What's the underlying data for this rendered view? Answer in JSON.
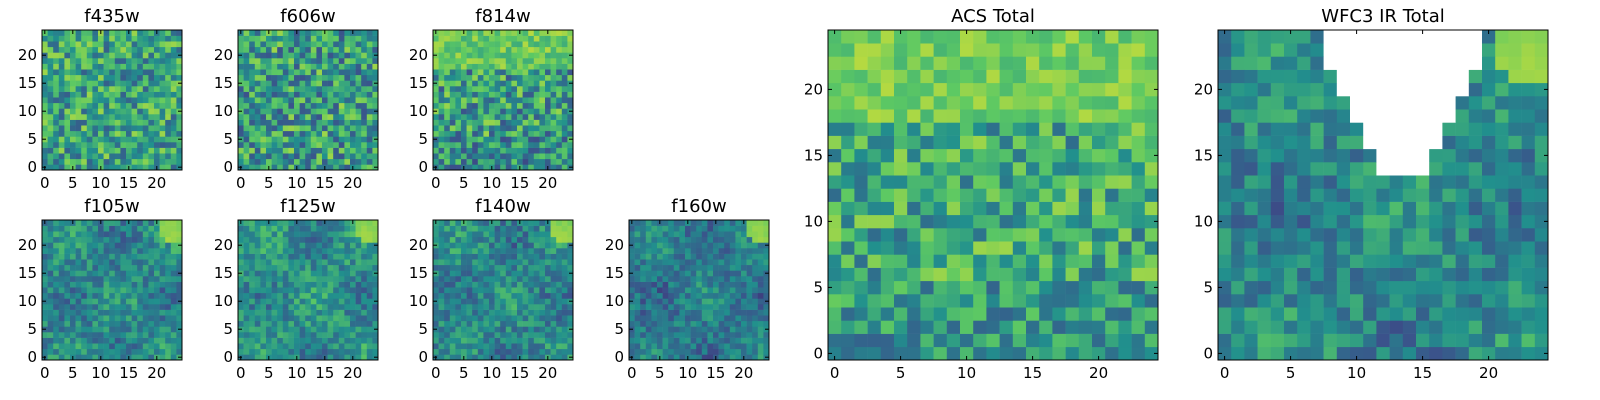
{
  "colormap": [
    "#440154",
    "#3b528b",
    "#21908d",
    "#5dc963",
    "#fde725"
  ],
  "chart_data": [
    {
      "type": "heatmap",
      "title": "f435w",
      "cmap_range": [
        0.3,
        0.85
      ],
      "seed": 11,
      "structure": "noise",
      "xticks": [
        "0",
        "5",
        "10",
        "15",
        "20"
      ],
      "yticks": [
        "0",
        "5",
        "10",
        "15",
        "20"
      ],
      "xlim": [
        0,
        24
      ],
      "ylim": [
        0,
        24
      ]
    },
    {
      "type": "heatmap",
      "title": "f606w",
      "cmap_range": [
        0.25,
        0.85
      ],
      "seed": 23,
      "structure": "noise",
      "xticks": [
        "0",
        "5",
        "10",
        "15",
        "20"
      ],
      "yticks": [
        "0",
        "5",
        "10",
        "15",
        "20"
      ],
      "xlim": [
        0,
        24
      ],
      "ylim": [
        0,
        24
      ]
    },
    {
      "type": "heatmap",
      "title": "f814w",
      "cmap_range": [
        0.25,
        0.85
      ],
      "seed": 37,
      "structure": "topband",
      "xticks": [
        "0",
        "5",
        "10",
        "15",
        "20"
      ],
      "yticks": [
        "0",
        "5",
        "10",
        "15",
        "20"
      ],
      "xlim": [
        0,
        24
      ],
      "ylim": [
        0,
        24
      ]
    },
    {
      "type": "heatmap",
      "title": "f105w",
      "cmap_range": [
        0.2,
        0.7
      ],
      "seed": 41,
      "structure": "corner",
      "xticks": [
        "0",
        "5",
        "10",
        "15",
        "20"
      ],
      "yticks": [
        "0",
        "5",
        "10",
        "15",
        "20"
      ],
      "xlim": [
        0,
        24
      ],
      "ylim": [
        0,
        24
      ]
    },
    {
      "type": "heatmap",
      "title": "f125w",
      "cmap_range": [
        0.25,
        0.75
      ],
      "seed": 53,
      "structure": "corner",
      "xticks": [
        "0",
        "5",
        "10",
        "15",
        "20"
      ],
      "yticks": [
        "0",
        "5",
        "10",
        "15",
        "20"
      ],
      "xlim": [
        0,
        24
      ],
      "ylim": [
        0,
        24
      ]
    },
    {
      "type": "heatmap",
      "title": "f140w",
      "cmap_range": [
        0.2,
        0.7
      ],
      "seed": 67,
      "structure": "corner",
      "xticks": [
        "0",
        "5",
        "10",
        "15",
        "20"
      ],
      "yticks": [
        "0",
        "5",
        "10",
        "15",
        "20"
      ],
      "xlim": [
        0,
        24
      ],
      "ylim": [
        0,
        24
      ]
    },
    {
      "type": "heatmap",
      "title": "f160w",
      "cmap_range": [
        0.15,
        0.6
      ],
      "seed": 79,
      "structure": "corner",
      "xticks": [
        "0",
        "5",
        "10",
        "15",
        "20"
      ],
      "yticks": [
        "0",
        "5",
        "10",
        "15",
        "20"
      ],
      "xlim": [
        0,
        24
      ],
      "ylim": [
        0,
        24
      ]
    },
    {
      "type": "heatmap",
      "title": "ACS Total",
      "cmap_range": [
        0.35,
        0.85
      ],
      "seed": 97,
      "structure": "topband",
      "xticks": [
        "0",
        "5",
        "10",
        "15",
        "20"
      ],
      "yticks": [
        "0",
        "5",
        "10",
        "15",
        "20"
      ],
      "xlim": [
        0,
        24
      ],
      "ylim": [
        0,
        24
      ]
    },
    {
      "type": "heatmap",
      "title": "WFC3 IR Total",
      "cmap_range": [
        0.2,
        0.7
      ],
      "seed": 113,
      "structure": "corner",
      "masked_region": "white cut-out, top centre",
      "xticks": [
        "0",
        "5",
        "10",
        "15",
        "20"
      ],
      "yticks": [
        "0",
        "5",
        "10",
        "15",
        "20"
      ],
      "xlim": [
        0,
        24
      ],
      "ylim": [
        0,
        24
      ]
    }
  ]
}
